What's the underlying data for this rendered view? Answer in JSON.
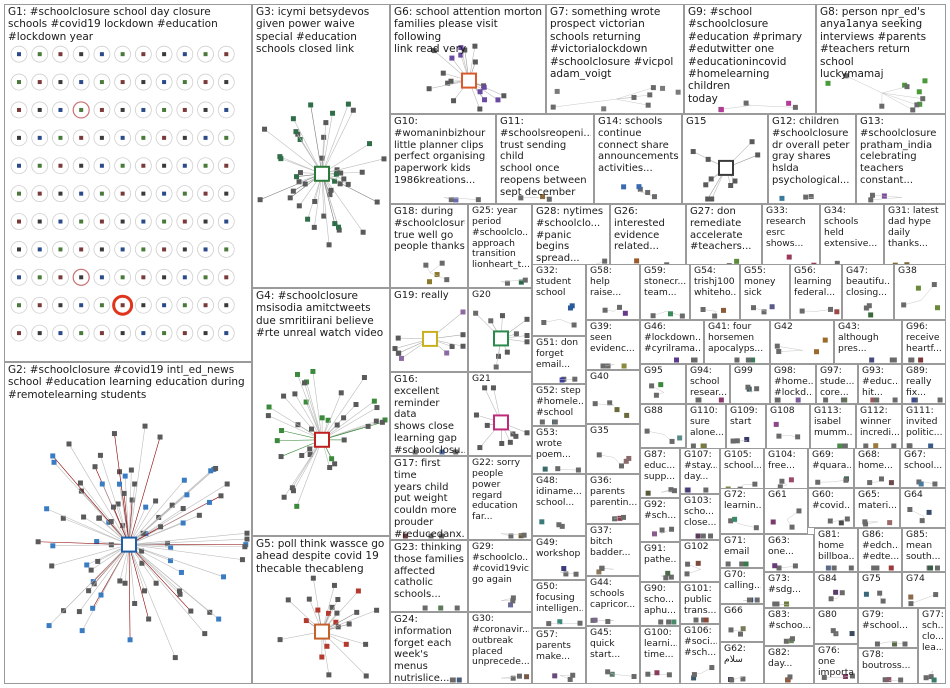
{
  "title": "",
  "groups": [
    {
      "id": "G1",
      "label": "G1: #schoolclosure school day closure\nschools #covid19 lockdown #education\n#lockdown year",
      "layout": "grid",
      "rings": [
        "#c97070",
        "#c97070",
        "#e0341c"
      ]
    },
    {
      "id": "G2",
      "label": "G2: #schoolclosure #covid19 intl_ed_news\nschool #education learning education during\n#remotelearning students",
      "layout": "hub",
      "hub": "#1f5fa8",
      "node": "#3a7cc2",
      "edge": "#8a0000"
    },
    {
      "id": "G3",
      "label": "G3: icymi betsydevos\ngiven power waive\nspecial #education\nschools closed link",
      "layout": "hub",
      "hub": "#2a7a3a",
      "node": "#2f6e48",
      "edge": "#7a7a7a"
    },
    {
      "id": "G4",
      "label": "G4: #schoolclosure\nmsisodia amitctweets\ndue smritiirani believe\n#rte unreal watch video",
      "layout": "hub",
      "hub": "#c01f1f",
      "node": "#3b8a3b",
      "edge": "#3b8a3b"
    },
    {
      "id": "G5",
      "label": "G5: poll think wassce go\nahead despite covid 19\nthecable thecableng",
      "layout": "hub",
      "hub": "#c4622d",
      "node": "#b43a2d",
      "edge": "#8a8a8a"
    },
    {
      "id": "G6",
      "label": "G6: school attention morton\nfamilies please visit following\nlink read very",
      "layout": "hub",
      "hub": "#d85a2a",
      "node": "#6a4aa0",
      "edge": "#999999"
    },
    {
      "id": "G7",
      "label": "G7: something wrote\nprospect victorian\nschools returning\n#victorialockdown\n#schoolclosure #vicpol\nadam_voigt",
      "layout": "scatter",
      "node": "#7a7a7a"
    },
    {
      "id": "G9",
      "label": "G9: #school\n#schoolclosure\n#education #primary\n#edutwitter one\n#educationincovid\n#homelearning children\ntoday",
      "layout": "scatter",
      "node": "#b53a9a"
    },
    {
      "id": "G8",
      "label": "G8: person npr_ed's\nanya1anya seeking\ninterviews #parents\n#teachers return school\nluckymamaj",
      "layout": "scatter",
      "node": "#4a9a3a"
    },
    {
      "id": "G10",
      "label": "G10:\n#womaninbizhour\nlittle planner clips\nperfect organising\npaperwork kids\n1986kreations...",
      "layout": "scatter",
      "node": "#6a6ab0"
    },
    {
      "id": "G11",
      "label": "G11:\n#schoolsreopeni...\ntrust sending child\nschool once\nreopens between\nsept december",
      "layout": "scatter",
      "node": "#8a6a3a"
    },
    {
      "id": "G14",
      "label": "G14: schools\ncontinue\nconnect share\nannouncements\nactivities...",
      "layout": "scatter",
      "node": "#3a6ab0"
    },
    {
      "id": "G15",
      "label": "G15",
      "layout": "hub",
      "hub": "#3a3a3a",
      "node": "#5a5a5a",
      "edge": "#999999"
    },
    {
      "id": "G12",
      "label": "G12: children\n#schoolclosure\ndr overall peter\ngray shares\nhslda\npsychological...",
      "layout": "scatter",
      "node": "#3a7a9a"
    },
    {
      "id": "G13",
      "label": "G13:\n#schoolclosure\npratham_india\ncelebrating\nteachers\nconstant...",
      "layout": "scatter",
      "node": "#7a4a9a"
    },
    {
      "id": "G18",
      "label": "G18: during\n#schoolclosure\ntrue well go\npeople thanks",
      "layout": "scatter",
      "node": "#8a7a2a"
    },
    {
      "id": "G25",
      "label": "G25: year\nperiod\n#schoolclo...\napproach\ntransition\nlionheart_t...",
      "layout": "scatter",
      "node": "#2a6a4a"
    },
    {
      "id": "G28",
      "label": "G28: nytimes\n#schoolclo...\n#panic begins\nspread...",
      "layout": "scatter",
      "node": "#3a5aa0"
    },
    {
      "id": "G26",
      "label": "G26:\ninterested\nevidence\nrelated...",
      "layout": "scatter",
      "node": "#9a5a2a"
    },
    {
      "id": "G27",
      "label": "G27: don\nremediate\naccelerate\n#teachers...",
      "layout": "scatter",
      "node": "#5a8a3a"
    },
    {
      "id": "G33",
      "label": "G33:\nresearch\nesrc\nshows...",
      "layout": "scatter",
      "node": "#9a3a5a"
    },
    {
      "id": "G34",
      "label": "G34:\nschools\nheld\nextensive...",
      "layout": "scatter",
      "node": "#3a8a8a"
    },
    {
      "id": "G31",
      "label": "G31: latest\ndad hype\ndaily\nthanks...",
      "layout": "scatter",
      "node": "#7a6a3a"
    },
    {
      "id": "G19",
      "label": "G19: really",
      "layout": "hub",
      "hub": "#c9b020",
      "node": "#8a6aa0",
      "edge": "#aaaaaa"
    },
    {
      "id": "G20",
      "label": "G20",
      "layout": "hub",
      "hub": "#2a8a4a",
      "node": "#6a6a6a",
      "edge": "#aaaaaa"
    },
    {
      "id": "G32",
      "label": "G32:\nstudent\nschool",
      "layout": "scatter",
      "node": "#2a5a9a"
    },
    {
      "id": "G58",
      "label": "G58:\nhelp\nraise...",
      "layout": "scatter",
      "node": "#6a3a8a"
    },
    {
      "id": "G59",
      "label": "G59:\nstonecr...\nteam...",
      "layout": "scatter",
      "node": "#3a8a5a"
    },
    {
      "id": "G54",
      "label": "G54:\ntrishj100\nwhiteho...",
      "layout": "scatter",
      "node": "#8a5a3a"
    },
    {
      "id": "G55",
      "label": "G55:\nmoney\nsick",
      "layout": "scatter",
      "node": "#5a5a8a"
    },
    {
      "id": "G56",
      "label": "G56:\nlearning\nfederal...",
      "layout": "scatter",
      "node": "#9a4a4a"
    },
    {
      "id": "G47",
      "label": "G47:\nbeautifu...\nclosing...",
      "layout": "scatter",
      "node": "#3a6a3a"
    },
    {
      "id": "G38",
      "label": "G38",
      "layout": "scatter",
      "node": "#6a8a3a"
    },
    {
      "id": "G16",
      "label": "G16:\nexcellent\nreminder data\nshows close\nlearning gap\n#schoolclosu...",
      "layout": "scatter",
      "node": "#4a6aa0"
    },
    {
      "id": "G21",
      "label": "G21",
      "layout": "hub",
      "hub": "#c02a7a",
      "node": "#5a5a5a",
      "edge": "#aaaaaa"
    },
    {
      "id": "G51",
      "label": "G51: don\nforget\nemail...",
      "layout": "scatter",
      "node": "#3a3a9a"
    },
    {
      "id": "G39",
      "label": "G39:\nseen\nevidenc...",
      "layout": "scatter",
      "node": "#8a8a3a"
    },
    {
      "id": "G46",
      "label": "G46:\n#lockdown...\n#cyrilrama...",
      "layout": "scatter",
      "node": "#5a3a8a"
    },
    {
      "id": "G41",
      "label": "G41: four\nhorsemen\napocalyps...",
      "layout": "scatter",
      "node": "#3a7a5a"
    },
    {
      "id": "G42",
      "label": "G42",
      "layout": "scatter",
      "node": "#9a6a2a"
    },
    {
      "id": "G43",
      "label": "G43:\nalthough\npres...",
      "layout": "scatter",
      "node": "#4a4a7a"
    },
    {
      "id": "G96",
      "label": "G96:\nreceive\nheartf...",
      "layout": "scatter",
      "node": "#7a3a3a"
    },
    {
      "id": "G52",
      "label": "G52: step\n#homele...\n#school",
      "layout": "scatter",
      "node": "#2a6a8a"
    },
    {
      "id": "G40",
      "label": "G40",
      "layout": "scatter",
      "node": "#6a6a3a"
    },
    {
      "id": "G95",
      "label": "G95",
      "layout": "scatter",
      "node": "#3a8a3a"
    },
    {
      "id": "G94",
      "label": "G94:\nschool\nresear...",
      "layout": "scatter",
      "node": "#8a3a6a"
    },
    {
      "id": "G99",
      "label": "G99",
      "layout": "scatter",
      "node": "#3a5a5a"
    },
    {
      "id": "G98",
      "label": "G98:\n#home...\n#lockd...",
      "layout": "scatter",
      "node": "#7a5a9a"
    },
    {
      "id": "G97",
      "label": "G97:\nstude...\ncore...",
      "layout": "scatter",
      "node": "#5a7a3a"
    },
    {
      "id": "G93",
      "label": "G93:\n#educ...\nhit...",
      "layout": "scatter",
      "node": "#9a5a5a"
    },
    {
      "id": "G89",
      "label": "G89:\nreally\nfix...",
      "layout": "scatter",
      "node": "#3a4a8a"
    },
    {
      "id": "G17",
      "label": "G17: first time\nyears child\nput weight\ncouldn more\nprouder\n#reducedanx...",
      "layout": "scatter",
      "node": "#6a3a3a"
    },
    {
      "id": "G53",
      "label": "G53:\nwrote\npoem...",
      "layout": "scatter",
      "node": "#3a6a6a"
    },
    {
      "id": "G35",
      "label": "G35",
      "layout": "scatter",
      "node": "#8a6a6a"
    },
    {
      "id": "G88",
      "label": "G88",
      "layout": "scatter",
      "node": "#5a8a8a"
    },
    {
      "id": "G110",
      "label": "G110:\nsure\nalone...",
      "layout": "scatter",
      "node": "#7a7a3a"
    },
    {
      "id": "G109",
      "label": "G109:\nstart",
      "layout": "scatter",
      "node": "#3a3a6a"
    },
    {
      "id": "G108",
      "label": "G108",
      "layout": "scatter",
      "node": "#8a4a8a"
    },
    {
      "id": "G113",
      "label": "G113:\nisabel\nmumm...",
      "layout": "scatter",
      "node": "#4a8a4a"
    },
    {
      "id": "G112",
      "label": "G112:\nwinner\nincredi...",
      "layout": "scatter",
      "node": "#9a7a3a"
    },
    {
      "id": "G111",
      "label": "G111:\ninvited\npolitic...",
      "layout": "scatter",
      "node": "#3a5a8a"
    },
    {
      "id": "G22",
      "label": "G22: sorry\npeople\npower\nregard\neducation\nfar...",
      "layout": "scatter",
      "node": "#6a5a3a"
    },
    {
      "id": "G48",
      "label": "G48:\nidiname...\nschool...",
      "layout": "scatter",
      "node": "#3a7a7a"
    },
    {
      "id": "G36",
      "label": "G36:\nparents\nparentin...",
      "layout": "scatter",
      "node": "#8a3a4a"
    },
    {
      "id": "G87",
      "label": "G87:\neduc...\nsupp...",
      "layout": "scatter",
      "node": "#5a5a3a"
    },
    {
      "id": "G107",
      "label": "G107:\n#stay...\nday...",
      "layout": "scatter",
      "node": "#4a3a7a"
    },
    {
      "id": "G105",
      "label": "G105:\nschool...",
      "layout": "scatter",
      "node": "#7a8a4a"
    },
    {
      "id": "G104",
      "label": "G104:\nfree...",
      "layout": "scatter",
      "node": "#9a4a6a"
    },
    {
      "id": "G69",
      "label": "G69:\n#quara...",
      "layout": "scatter",
      "node": "#3a6a4a"
    },
    {
      "id": "G68",
      "label": "G68:\nhome...",
      "layout": "scatter",
      "node": "#6a4a4a"
    },
    {
      "id": "G67",
      "label": "G67:\nschool...",
      "layout": "scatter",
      "node": "#4a7a9a"
    },
    {
      "id": "G92",
      "label": "G92:\n#sch...",
      "layout": "scatter",
      "node": "#8a5a8a"
    },
    {
      "id": "G103",
      "label": "G103:\nscho...\nclose...",
      "layout": "scatter",
      "node": "#5a3a5a"
    },
    {
      "id": "G72",
      "label": "G72:\nlearnin...",
      "layout": "scatter",
      "node": "#3a8a6a"
    },
    {
      "id": "G61",
      "label": "G61",
      "layout": "scatter",
      "node": "#7a3a6a"
    },
    {
      "id": "G60",
      "label": "G60:\n#covid...",
      "layout": "scatter",
      "node": "#4a4a4a"
    },
    {
      "id": "G65",
      "label": "G65:\nmateri...",
      "layout": "scatter",
      "node": "#9a6a6a"
    },
    {
      "id": "G64",
      "label": "G64",
      "layout": "scatter",
      "node": "#3a4a6a"
    },
    {
      "id": "G23",
      "label": "G23: thinking\nthose families\naffected\ncatholic\nschools...",
      "layout": "scatter",
      "node": "#5a7a5a"
    },
    {
      "id": "G29",
      "label": "G29:\n#schoolclo...\n#covid19vic\ngo again",
      "layout": "scatter",
      "node": "#6a6a9a"
    },
    {
      "id": "G49",
      "label": "G49:\nworkshop",
      "layout": "scatter",
      "node": "#3a3a7a"
    },
    {
      "id": "G37",
      "label": "G37:\nbitch\nbadder...",
      "layout": "scatter",
      "node": "#8a7a5a"
    },
    {
      "id": "G91",
      "label": "G91:\npathe...",
      "layout": "scatter",
      "node": "#4a6a4a"
    },
    {
      "id": "G102",
      "label": "G102",
      "layout": "scatter",
      "node": "#7a4a3a"
    },
    {
      "id": "G71",
      "label": "G71:\nemail",
      "layout": "scatter",
      "node": "#3a7a4a"
    },
    {
      "id": "G63",
      "label": "G63:\none...",
      "layout": "scatter",
      "node": "#6a3a7a"
    },
    {
      "id": "G81",
      "label": "G81:\nhome\nbillboa...",
      "layout": "scatter",
      "node": "#5a6a8a"
    },
    {
      "id": "G86",
      "label": "G86:\n#edch...\n#edte...",
      "layout": "scatter",
      "node": "#9a3a3a"
    },
    {
      "id": "G85",
      "label": "G85:\nmean\nsouth...",
      "layout": "scatter",
      "node": "#3a5a4a"
    },
    {
      "id": "G44",
      "label": "G44:\nschools\ncapricor...",
      "layout": "scatter",
      "node": "#7a6a8a"
    },
    {
      "id": "G90",
      "label": "G90:\nscho...\naphu...",
      "layout": "scatter",
      "node": "#4a8a6a"
    },
    {
      "id": "G101",
      "label": "G101:\npublic\ntrans...",
      "layout": "scatter",
      "node": "#8a4a3a"
    },
    {
      "id": "G70",
      "label": "G70:\ncalling...",
      "layout": "scatter",
      "node": "#3a4a7a"
    },
    {
      "id": "G73",
      "label": "G73:\n#sdg...",
      "layout": "scatter",
      "node": "#6a7a3a"
    },
    {
      "id": "G84",
      "label": "G84",
      "layout": "scatter",
      "node": "#5a3a6a"
    },
    {
      "id": "G75",
      "label": "G75",
      "layout": "scatter",
      "node": "#3a6a7a"
    },
    {
      "id": "G74",
      "label": "G74",
      "layout": "scatter",
      "node": "#8a6a4a"
    },
    {
      "id": "G24",
      "label": "G24:\ninformation\nforget each\nweek's menus\nnutrislice...",
      "layout": "scatter",
      "node": "#4a5a7a"
    },
    {
      "id": "G30",
      "label": "G30:\n#coronavir...\noutbreak\nplaced\nunprecede...",
      "layout": "scatter",
      "node": "#7a5a4a"
    },
    {
      "id": "G50",
      "label": "G50:\nfocusing\nintelligen...",
      "layout": "scatter",
      "node": "#3a8a7a"
    },
    {
      "id": "G57",
      "label": "G57:\nparents\nmake...",
      "layout": "scatter",
      "node": "#6a4a7a"
    },
    {
      "id": "G45",
      "label": "G45:\nquick\nstart...",
      "layout": "scatter",
      "node": "#5a7a6a"
    },
    {
      "id": "G100",
      "label": "G100:\nlearni...\ntime...",
      "layout": "scatter",
      "node": "#8a3a5a"
    },
    {
      "id": "G106",
      "label": "G106:\n#soci...\n#sch...",
      "layout": "scatter",
      "node": "#3a5a6a"
    },
    {
      "id": "G66",
      "label": "G66",
      "layout": "scatter",
      "node": "#7a7a5a"
    },
    {
      "id": "G62",
      "label": "G62:\nسلام",
      "layout": "scatter",
      "node": "#4a3a5a"
    },
    {
      "id": "G83",
      "label": "G83:\n#schoo...",
      "layout": "scatter",
      "node": "#6a8a5a"
    },
    {
      "id": "G82",
      "label": "G82:\nday...",
      "layout": "scatter",
      "node": "#9a5a3a"
    },
    {
      "id": "G80",
      "label": "G80",
      "layout": "scatter",
      "node": "#3a4a5a"
    },
    {
      "id": "G76",
      "label": "G76: one\nimporta...",
      "layout": "scatter",
      "node": "#7a3a5a"
    },
    {
      "id": "G79",
      "label": "G79:\n#school...",
      "layout": "scatter",
      "node": "#5a6a4a"
    },
    {
      "id": "G78",
      "label": "G78:\nboutross...",
      "layout": "scatter",
      "node": "#8a5a6a"
    },
    {
      "id": "G77",
      "label": "G77:\nsch...\nclo...\nlea...",
      "layout": "scatter",
      "node": "#3a7a6a"
    }
  ]
}
